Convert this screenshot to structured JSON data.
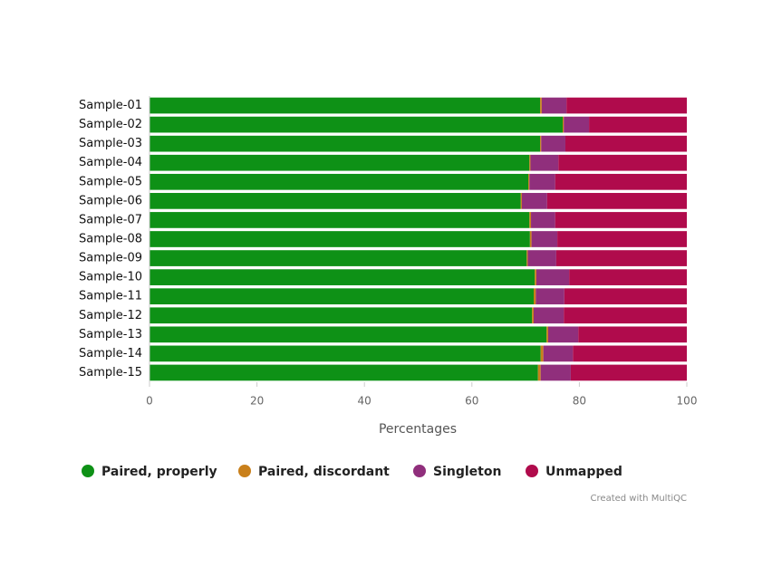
{
  "chart_data": {
    "type": "stacked_bar_horizontal",
    "x_label": "Percentages",
    "credit": "Created with MultiQC",
    "categories": [
      "Sample-01",
      "Sample-02",
      "Sample-03",
      "Sample-04",
      "Sample-05",
      "Sample-06",
      "Sample-07",
      "Sample-08",
      "Sample-09",
      "Sample-10",
      "Sample-11",
      "Sample-12",
      "Sample-13",
      "Sample-14",
      "Sample-15"
    ],
    "series": [
      {
        "name": "Paired, properly",
        "color": "#0e9116",
        "values": [
          72.7,
          76.9,
          72.7,
          70.7,
          70.5,
          69.1,
          70.7,
          70.8,
          70.2,
          71.7,
          71.5,
          71.2,
          73.9,
          72.8,
          72.3
        ]
      },
      {
        "name": "Paired, discordant",
        "color": "#c9801b",
        "values": [
          0.3,
          0.2,
          0.2,
          0.2,
          0.2,
          0.2,
          0.3,
          0.3,
          0.2,
          0.3,
          0.4,
          0.3,
          0.3,
          0.5,
          0.5
        ]
      },
      {
        "name": "Singleton",
        "color": "#902f7c",
        "values": [
          4.6,
          4.7,
          4.5,
          5.2,
          4.8,
          4.7,
          4.5,
          4.8,
          5.3,
          6.1,
          5.3,
          5.6,
          5.6,
          5.5,
          5.6
        ]
      },
      {
        "name": "Unmapped",
        "color": "#b00b4c",
        "values": [
          22.4,
          18.2,
          22.6,
          23.9,
          24.5,
          26.0,
          24.5,
          24.1,
          24.3,
          21.9,
          22.8,
          22.9,
          20.2,
          21.2,
          21.6
        ]
      }
    ],
    "xlim": [
      0,
      100
    ],
    "xticks": [
      0,
      20,
      40,
      60,
      80,
      100
    ],
    "grid": false,
    "legend": "bottom"
  }
}
